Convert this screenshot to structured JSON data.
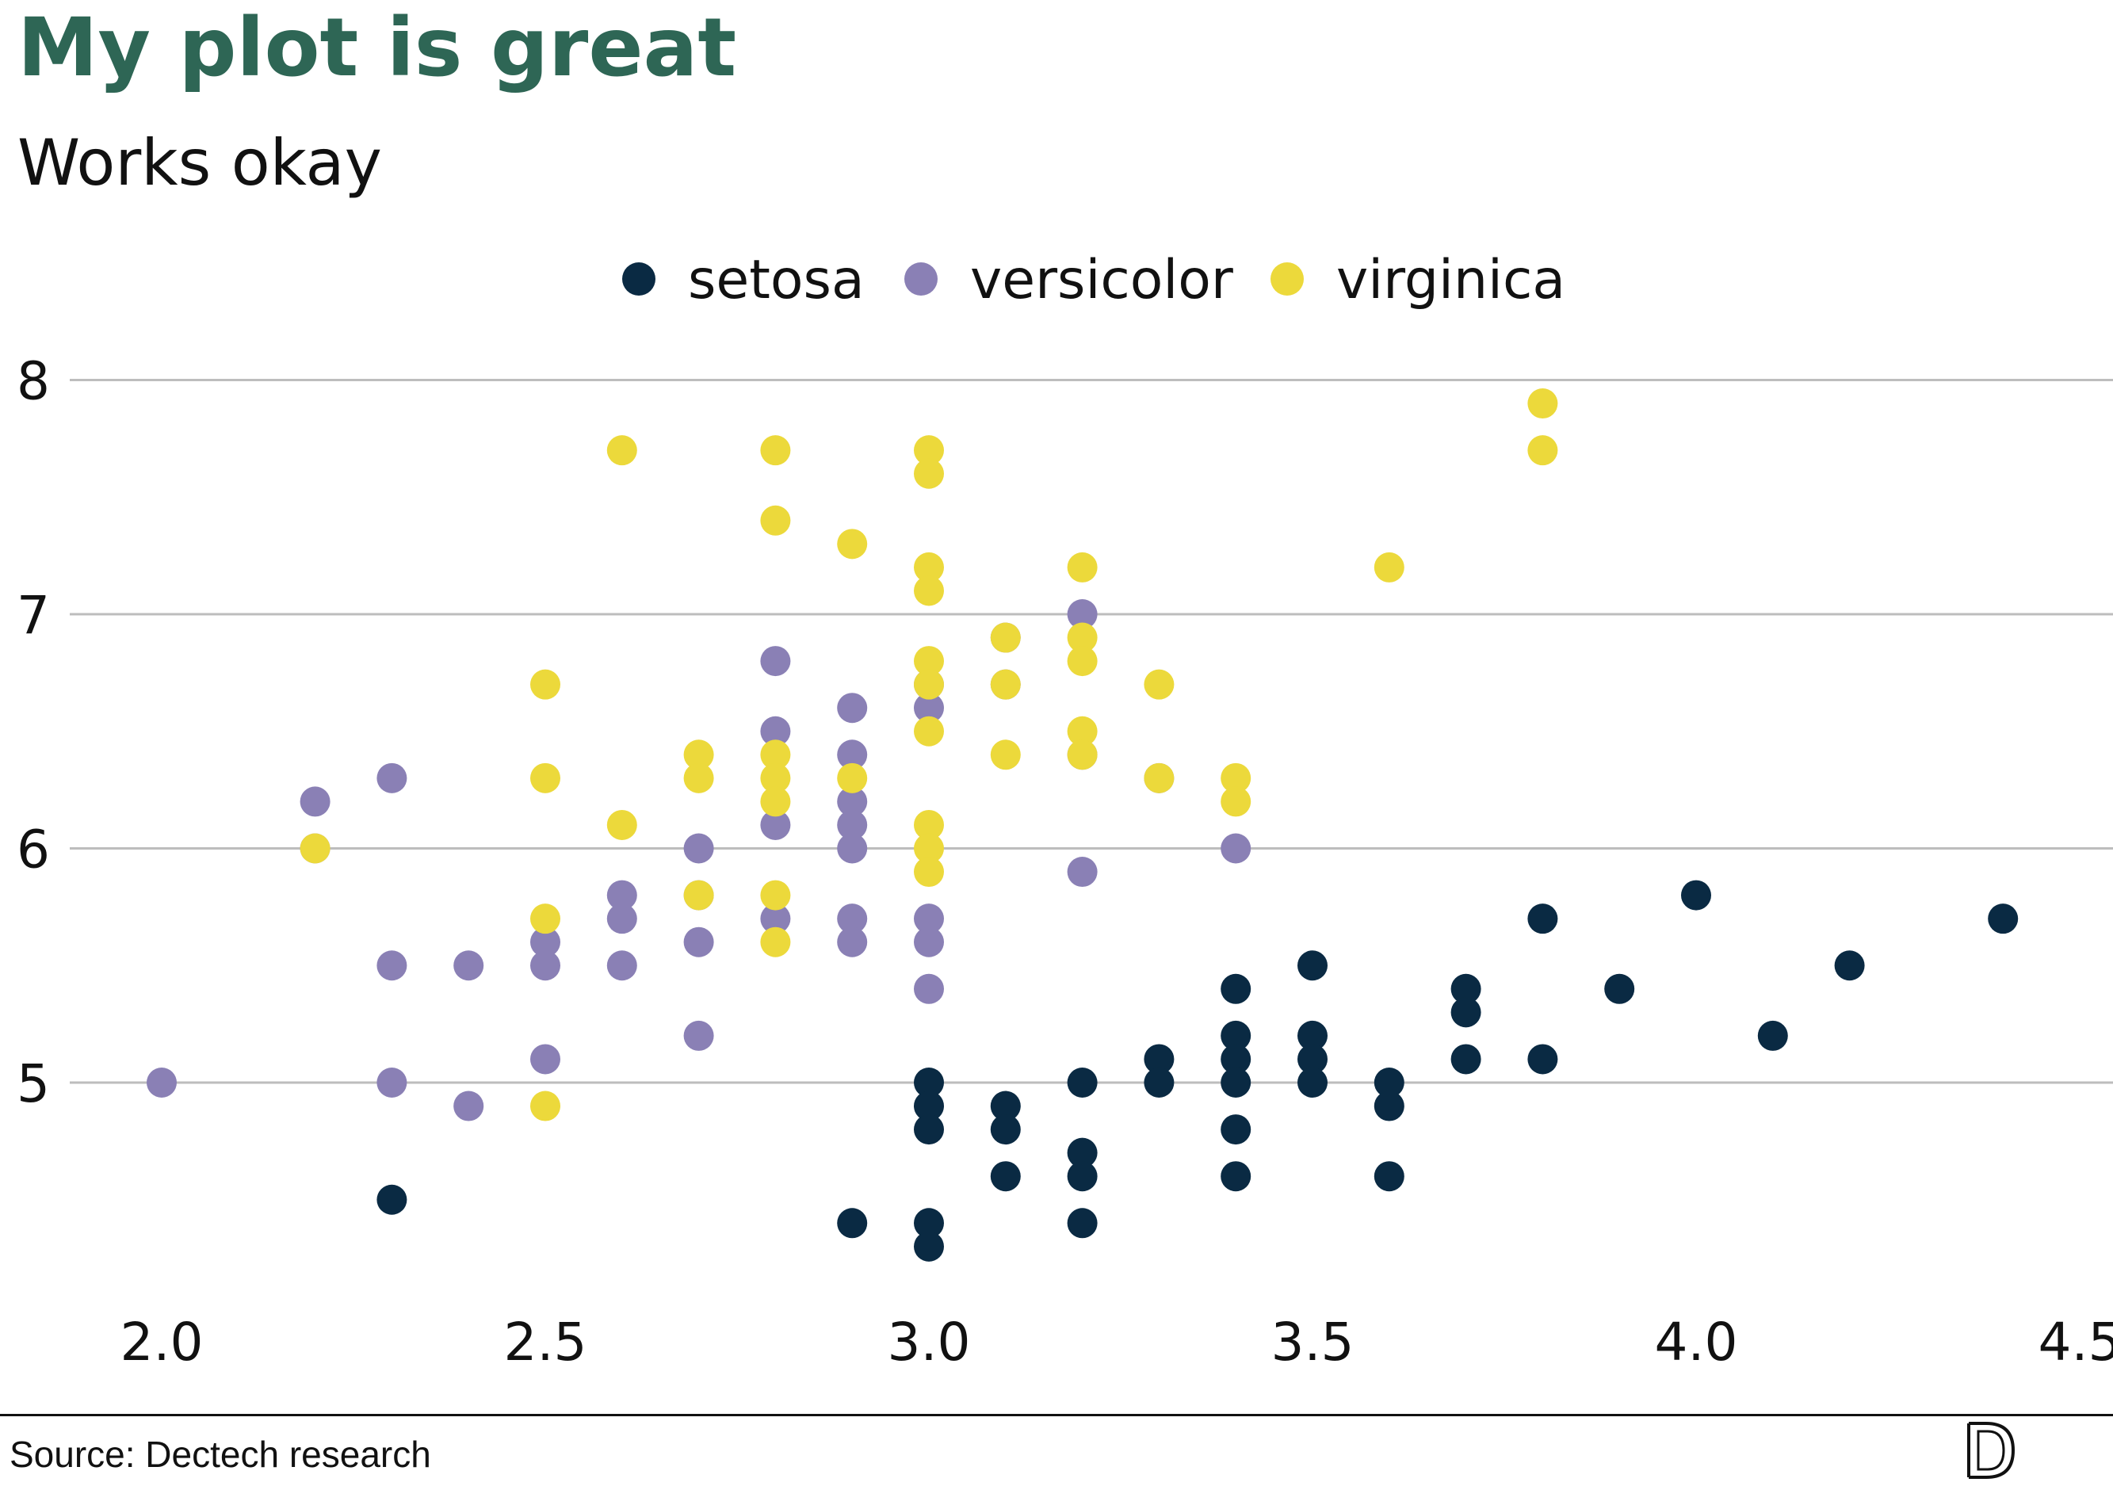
{
  "header": {
    "title": "My plot is great",
    "subtitle": "Works okay"
  },
  "footer": {
    "source": "Source: Dectech research",
    "logo_icon": "dectech-logo-icon"
  },
  "colors": {
    "title": "#2e6655",
    "setosa": "#0a2a43",
    "versicolor": "#8a80b5",
    "virginica": "#ecd93b",
    "grid": "#bdbdbd"
  },
  "chart_data": {
    "type": "scatter",
    "xlabel": "",
    "ylabel": "",
    "xlim": [
      2.0,
      4.5
    ],
    "ylim": [
      4.3,
      8.0
    ],
    "x_ticks": [
      2.0,
      2.5,
      3.0,
      3.5,
      4.0,
      4.5
    ],
    "x_tick_labels": [
      "2.0",
      "2.5",
      "3.0",
      "3.5",
      "4.0",
      "4.5"
    ],
    "y_ticks": [
      5,
      6,
      7,
      8
    ],
    "y_tick_labels": [
      "5",
      "6",
      "7",
      "8"
    ],
    "grid": "horizontal",
    "legend": {
      "position": "top-center",
      "marker": "circle"
    },
    "series": [
      {
        "name": "setosa",
        "color": "#0a2a43",
        "points": [
          [
            2.3,
            4.5
          ],
          [
            2.9,
            4.4
          ],
          [
            3.0,
            5.0
          ],
          [
            3.0,
            4.9
          ],
          [
            3.0,
            4.8
          ],
          [
            3.0,
            4.4
          ],
          [
            3.0,
            4.3
          ],
          [
            3.1,
            4.9
          ],
          [
            3.1,
            4.8
          ],
          [
            3.1,
            4.6
          ],
          [
            3.2,
            5.0
          ],
          [
            3.2,
            4.7
          ],
          [
            3.2,
            4.6
          ],
          [
            3.2,
            4.4
          ],
          [
            3.3,
            5.1
          ],
          [
            3.3,
            5.0
          ],
          [
            3.4,
            5.4
          ],
          [
            3.4,
            5.2
          ],
          [
            3.4,
            5.1
          ],
          [
            3.4,
            5.0
          ],
          [
            3.4,
            4.8
          ],
          [
            3.4,
            4.6
          ],
          [
            3.5,
            5.5
          ],
          [
            3.5,
            5.2
          ],
          [
            3.5,
            5.1
          ],
          [
            3.5,
            5.0
          ],
          [
            3.6,
            5.0
          ],
          [
            3.6,
            4.9
          ],
          [
            3.6,
            4.6
          ],
          [
            3.7,
            5.4
          ],
          [
            3.7,
            5.3
          ],
          [
            3.7,
            5.1
          ],
          [
            3.8,
            5.7
          ],
          [
            3.8,
            5.1
          ],
          [
            3.9,
            5.4
          ],
          [
            4.0,
            5.8
          ],
          [
            4.1,
            5.2
          ],
          [
            4.2,
            5.5
          ],
          [
            4.4,
            5.7
          ]
        ]
      },
      {
        "name": "versicolor",
        "color": "#8a80b5",
        "points": [
          [
            2.0,
            5.0
          ],
          [
            2.2,
            6.2
          ],
          [
            2.2,
            6.0
          ],
          [
            2.3,
            6.3
          ],
          [
            2.3,
            5.5
          ],
          [
            2.3,
            5.0
          ],
          [
            2.4,
            5.5
          ],
          [
            2.4,
            4.9
          ],
          [
            2.5,
            5.6
          ],
          [
            2.5,
            5.5
          ],
          [
            2.5,
            5.1
          ],
          [
            2.6,
            5.8
          ],
          [
            2.6,
            5.7
          ],
          [
            2.6,
            5.5
          ],
          [
            2.7,
            6.0
          ],
          [
            2.7,
            5.8
          ],
          [
            2.7,
            5.6
          ],
          [
            2.7,
            5.2
          ],
          [
            2.8,
            6.8
          ],
          [
            2.8,
            6.5
          ],
          [
            2.8,
            6.1
          ],
          [
            2.8,
            5.7
          ],
          [
            2.9,
            6.6
          ],
          [
            2.9,
            6.4
          ],
          [
            2.9,
            6.2
          ],
          [
            2.9,
            6.1
          ],
          [
            2.9,
            6.0
          ],
          [
            2.9,
            5.7
          ],
          [
            2.9,
            5.6
          ],
          [
            3.0,
            6.7
          ],
          [
            3.0,
            6.6
          ],
          [
            3.0,
            5.7
          ],
          [
            3.0,
            5.6
          ],
          [
            3.0,
            5.4
          ],
          [
            3.1,
            6.9
          ],
          [
            3.1,
            6.7
          ],
          [
            3.2,
            7.0
          ],
          [
            3.2,
            6.4
          ],
          [
            3.2,
            5.9
          ],
          [
            3.3,
            6.3
          ],
          [
            3.4,
            6.0
          ]
        ]
      },
      {
        "name": "virginica",
        "color": "#ecd93b",
        "points": [
          [
            2.2,
            6.0
          ],
          [
            2.5,
            6.7
          ],
          [
            2.5,
            6.3
          ],
          [
            2.5,
            5.7
          ],
          [
            2.5,
            4.9
          ],
          [
            2.6,
            7.7
          ],
          [
            2.6,
            6.1
          ],
          [
            2.7,
            6.4
          ],
          [
            2.7,
            6.3
          ],
          [
            2.7,
            5.8
          ],
          [
            2.8,
            7.7
          ],
          [
            2.8,
            7.4
          ],
          [
            2.8,
            6.4
          ],
          [
            2.8,
            6.3
          ],
          [
            2.8,
            6.2
          ],
          [
            2.8,
            5.8
          ],
          [
            2.8,
            5.6
          ],
          [
            2.9,
            7.3
          ],
          [
            2.9,
            6.3
          ],
          [
            3.0,
            7.7
          ],
          [
            3.0,
            7.6
          ],
          [
            3.0,
            7.2
          ],
          [
            3.0,
            7.1
          ],
          [
            3.0,
            6.8
          ],
          [
            3.0,
            6.7
          ],
          [
            3.0,
            6.5
          ],
          [
            3.0,
            6.1
          ],
          [
            3.0,
            6.0
          ],
          [
            3.0,
            5.9
          ],
          [
            3.1,
            6.9
          ],
          [
            3.1,
            6.7
          ],
          [
            3.1,
            6.4
          ],
          [
            3.2,
            7.2
          ],
          [
            3.2,
            6.9
          ],
          [
            3.2,
            6.8
          ],
          [
            3.2,
            6.5
          ],
          [
            3.2,
            6.4
          ],
          [
            3.3,
            6.7
          ],
          [
            3.3,
            6.3
          ],
          [
            3.4,
            6.3
          ],
          [
            3.4,
            6.2
          ],
          [
            3.6,
            7.2
          ],
          [
            3.8,
            7.9
          ],
          [
            3.8,
            7.7
          ]
        ]
      }
    ]
  }
}
